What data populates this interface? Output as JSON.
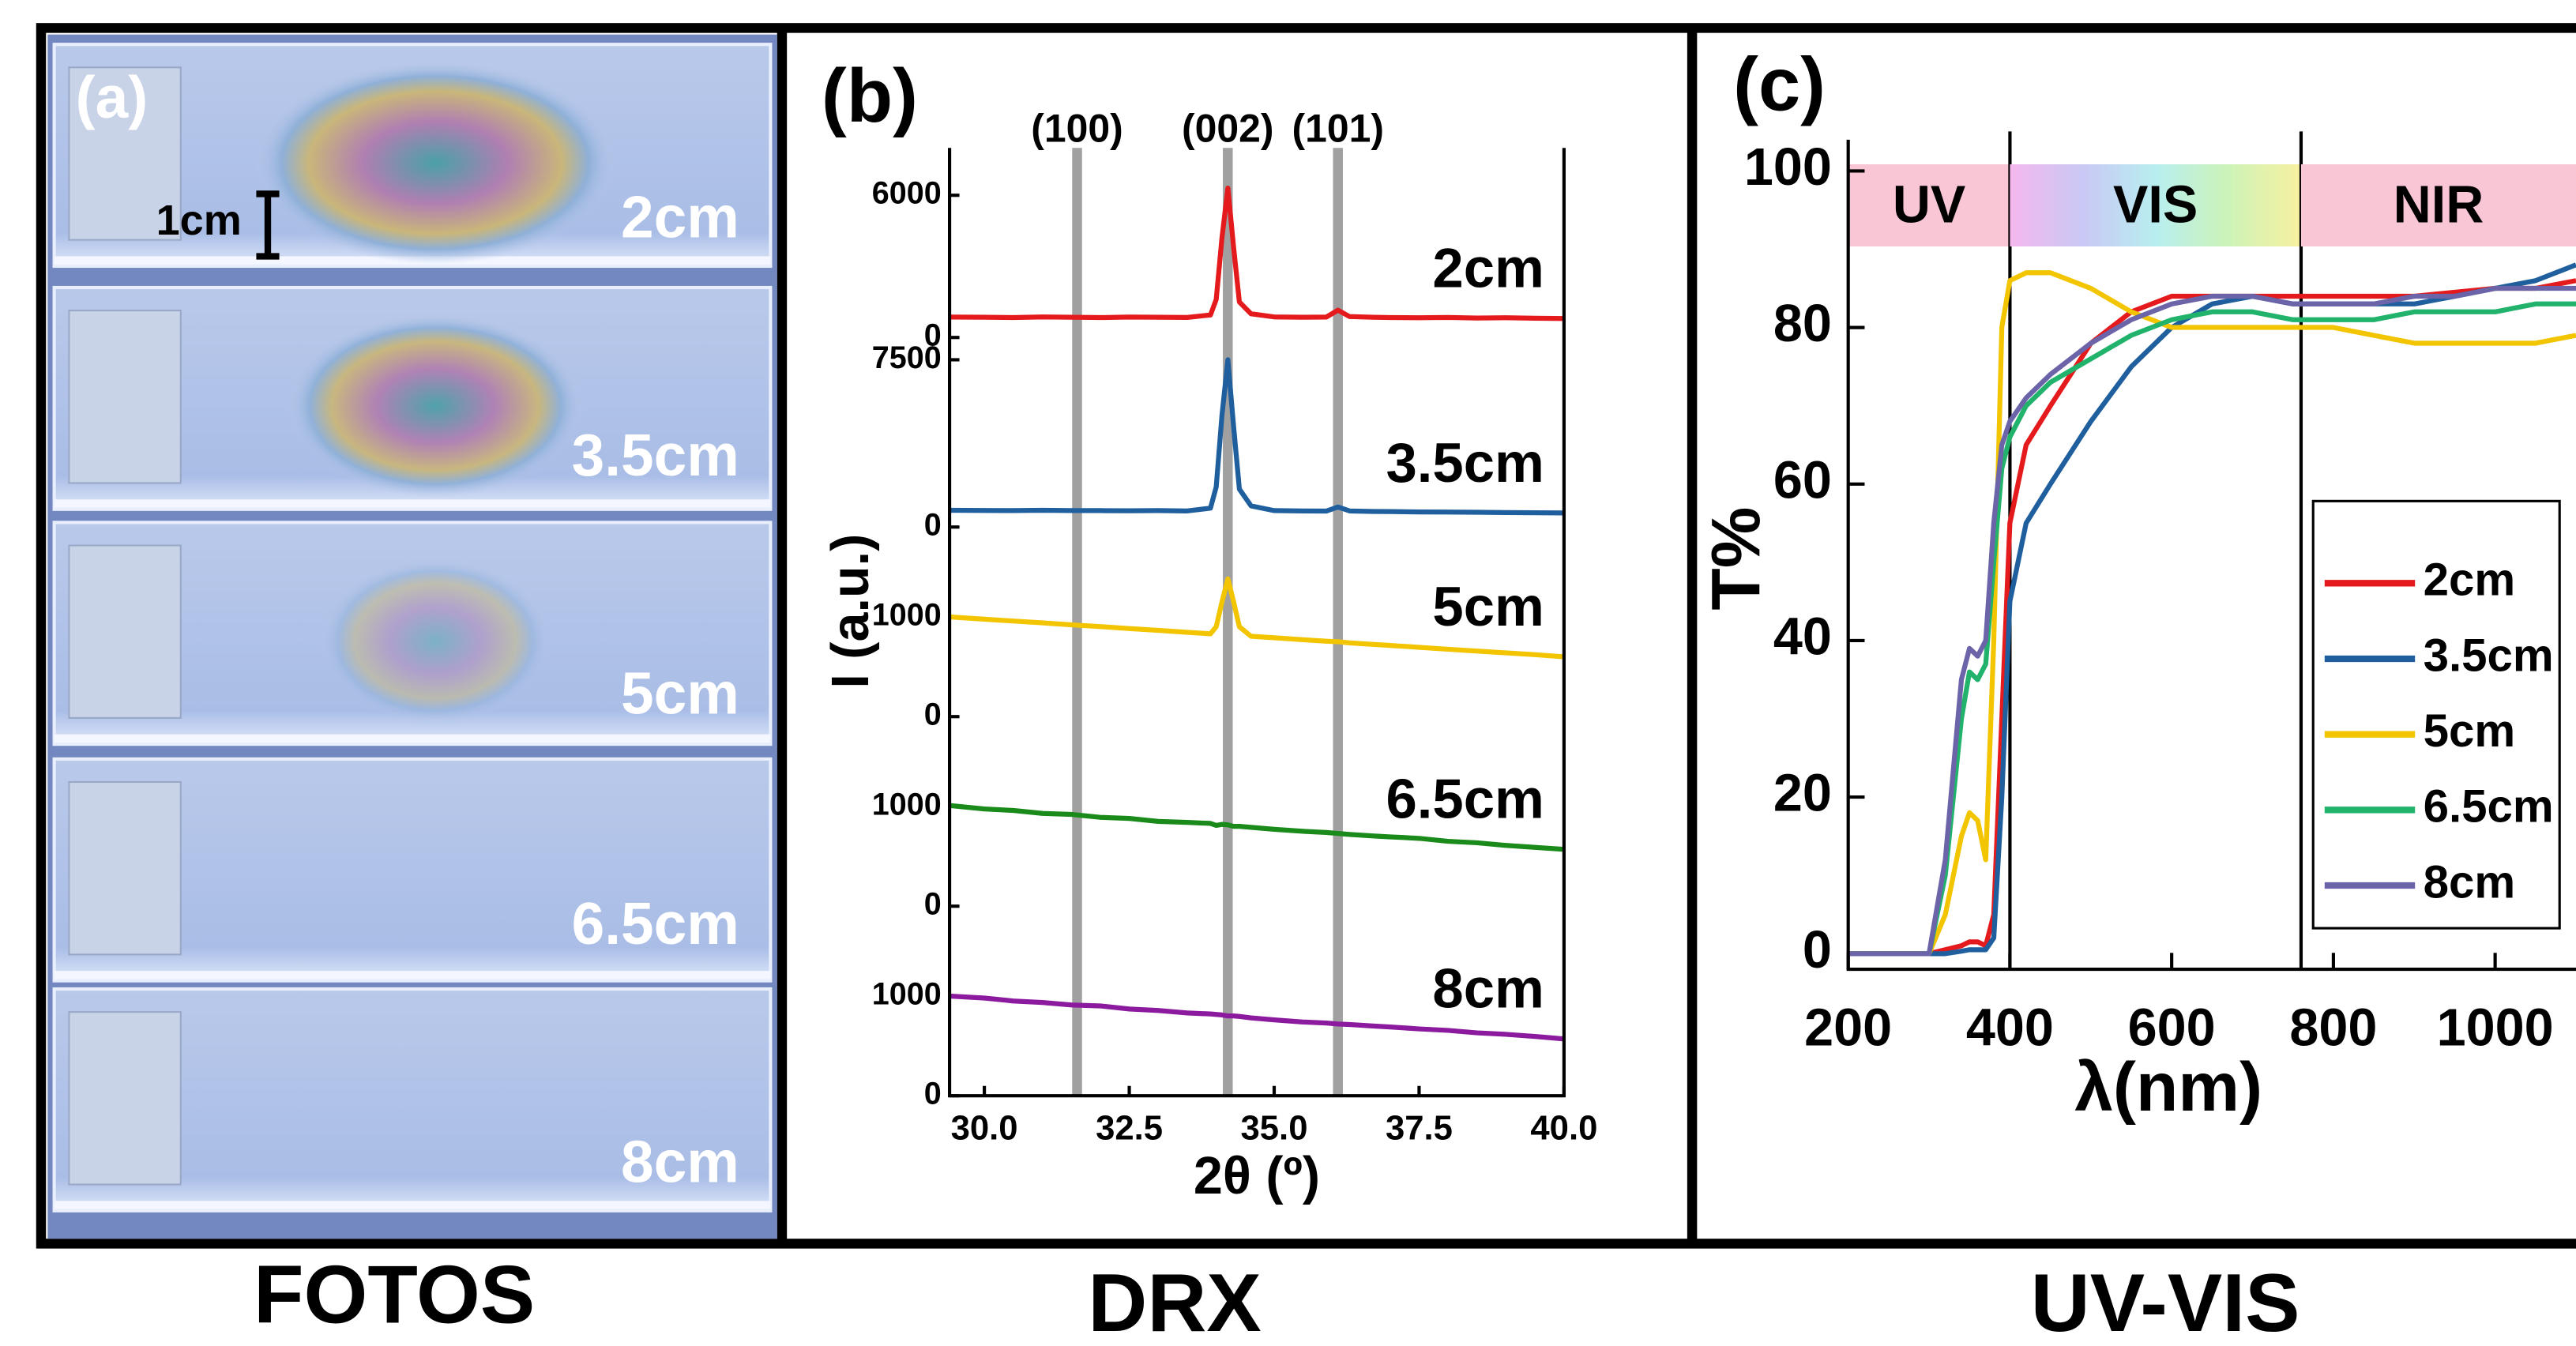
{
  "photo": {
    "panel_label": "(a)",
    "scale_label": "1cm",
    "sample_labels": [
      "2cm",
      "3.5cm",
      "5cm",
      "6.5cm",
      "8cm"
    ],
    "caption": "FOTOS"
  },
  "chart_data": [
    {
      "type": "line",
      "panel_label": "(b)",
      "caption": "DRX",
      "xlabel": "2θ (º)",
      "ylabel": "I (a.u.)",
      "xlim": [
        29.4,
        40
      ],
      "xticks": [
        {
          "value": 30,
          "label": "30.0"
        },
        32.5,
        {
          "value": 35,
          "label": "35.0"
        },
        37.5,
        {
          "value": 40,
          "label": "40.0"
        }
      ],
      "reference_lines": [
        {
          "label": "(100)",
          "value": 31.6
        },
        {
          "label": "(002)",
          "value": 34.2
        },
        {
          "label": "(101)",
          "value": 36.1
        }
      ],
      "x": [
        29.4,
        30,
        30.5,
        31,
        31.5,
        32,
        32.5,
        33,
        33.5,
        33.9,
        34.0,
        34.1,
        34.2,
        34.3,
        34.4,
        34.6,
        35,
        35.5,
        35.9,
        36.1,
        36.3,
        36.7,
        37,
        37.5,
        38,
        38.5,
        39,
        39.5,
        40
      ],
      "series": [
        {
          "name": "2cm",
          "color": "#e41a1c",
          "ylim": [
            0,
            8000
          ],
          "yticks": [
            0,
            6000
          ],
          "values": [
            860,
            850,
            840,
            870,
            850,
            840,
            860,
            850,
            845,
            950,
            1600,
            4200,
            6300,
            3800,
            1500,
            1000,
            870,
            850,
            860,
            1150,
            880,
            850,
            840,
            830,
            845,
            820,
            830,
            810,
            800
          ]
        },
        {
          "name": "3.5cm",
          "color": "#1f5f9e",
          "ylim": [
            0,
            8500
          ],
          "yticks": [
            0,
            7500
          ],
          "values": [
            750,
            745,
            740,
            750,
            735,
            740,
            730,
            735,
            725,
            850,
            1800,
            5000,
            7500,
            4500,
            1700,
            950,
            740,
            720,
            715,
            900,
            720,
            700,
            690,
            680,
            670,
            660,
            650,
            640,
            630
          ]
        },
        {
          "name": "5cm",
          "color": "#f2c500",
          "ylim": [
            0,
            1900
          ],
          "yticks": [
            0,
            1000
          ],
          "values": [
            1000,
            977,
            958,
            940,
            921,
            902,
            883,
            864,
            845,
            830,
            900,
            1150,
            1380,
            1150,
            900,
            805,
            790,
            770,
            755,
            750,
            740,
            725,
            713,
            695,
            675,
            657,
            638,
            620,
            600
          ]
        },
        {
          "name": "6.5cm",
          "color": "#1a8a1a",
          "ylim": [
            0,
            1900
          ],
          "yticks": [
            0,
            1000
          ],
          "values": [
            1010,
            975,
            960,
            930,
            920,
            890,
            880,
            850,
            840,
            830,
            810,
            820,
            815,
            800,
            800,
            790,
            770,
            750,
            740,
            730,
            720,
            705,
            695,
            680,
            650,
            635,
            610,
            590,
            570
          ]
        },
        {
          "name": "8cm",
          "color": "#8b1a9e",
          "ylim": [
            0,
            1900
          ],
          "yticks": [
            0,
            1000
          ],
          "values": [
            1000,
            980,
            950,
            935,
            910,
            900,
            870,
            855,
            830,
            820,
            815,
            810,
            800,
            800,
            795,
            780,
            760,
            740,
            730,
            720,
            715,
            700,
            690,
            670,
            655,
            630,
            615,
            595,
            570
          ]
        }
      ]
    },
    {
      "type": "line",
      "panel_label": "(c)",
      "caption": "UV-VIS",
      "xlabel": "λ(nm)",
      "ylabel": "T%",
      "xlim": [
        200,
        1100
      ],
      "ylim": [
        -2,
        104
      ],
      "xticks": [
        200,
        400,
        600,
        800,
        1000
      ],
      "yticks": [
        0,
        20,
        40,
        60,
        80,
        100
      ],
      "regions": [
        {
          "label": "UV",
          "from": 200,
          "to": 400
        },
        {
          "label": "VIS",
          "from": 400,
          "to": 760
        },
        {
          "label": "NIR",
          "from": 760,
          "to": 1100
        }
      ],
      "legend": "right",
      "x": [
        200,
        280,
        300,
        320,
        340,
        350,
        360,
        370,
        380,
        390,
        400,
        420,
        450,
        500,
        550,
        600,
        650,
        700,
        750,
        800,
        850,
        900,
        950,
        1000,
        1050,
        1100
      ],
      "series": [
        {
          "name": "2cm",
          "color": "#e41a1c",
          "values": [
            0,
            0,
            0,
            0.5,
            1,
            1.5,
            1.5,
            1,
            5,
            30,
            55,
            65,
            70,
            78,
            82,
            84,
            84,
            84,
            84,
            84,
            84,
            84,
            84.5,
            85,
            85,
            86
          ]
        },
        {
          "name": "3.5cm",
          "color": "#1f5f9e",
          "values": [
            0,
            0,
            0,
            0,
            0.3,
            0.5,
            0.5,
            0.5,
            2,
            20,
            45,
            55,
            60,
            68,
            75,
            80,
            83,
            84,
            83,
            83,
            83,
            83,
            84,
            85,
            86,
            88
          ]
        },
        {
          "name": "5cm",
          "color": "#f2c500",
          "values": [
            0,
            0,
            0,
            5,
            15,
            18,
            17,
            12,
            40,
            80,
            86,
            87,
            87,
            85,
            82,
            80,
            80,
            80,
            80,
            80,
            79,
            78,
            78,
            78,
            78,
            79
          ]
        },
        {
          "name": "6.5cm",
          "color": "#21b36b",
          "values": [
            0,
            0,
            0,
            10,
            30,
            36,
            35,
            37,
            50,
            62,
            66,
            70,
            73,
            76,
            79,
            81,
            82,
            82,
            81,
            81,
            81,
            82,
            82,
            82,
            83,
            83
          ]
        },
        {
          "name": "8cm",
          "color": "#6b64a8",
          "values": [
            0,
            0,
            0,
            12,
            35,
            39,
            38,
            40,
            55,
            65,
            68,
            71,
            74,
            78,
            81,
            83,
            84,
            84,
            83,
            83,
            83,
            84,
            84,
            85,
            85,
            85
          ]
        }
      ]
    }
  ]
}
